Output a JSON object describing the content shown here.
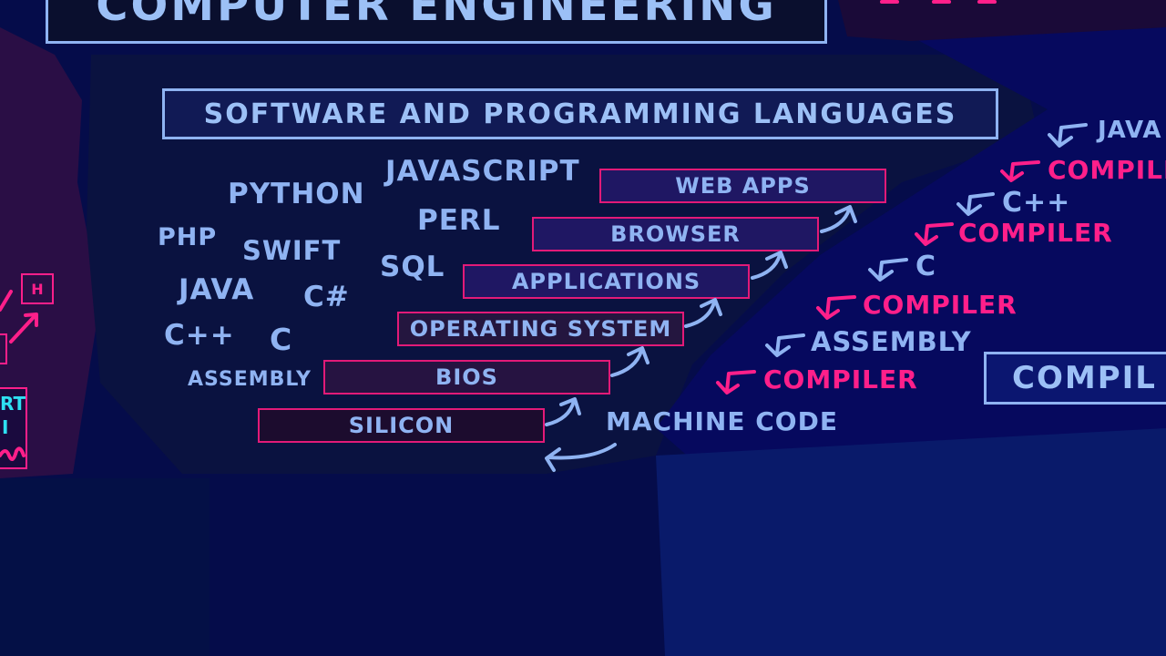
{
  "header": {
    "title": "COMPUTER ENGINEERING"
  },
  "section": {
    "title": "SOFTWARE AND PROGRAMMING LANGUAGES"
  },
  "languages": [
    "PYTHON",
    "JAVASCRIPT",
    "PERL",
    "PHP",
    "SWIFT",
    "SQL",
    "JAVA",
    "C#",
    "C++",
    "C",
    "ASSEMBLY"
  ],
  "stack": [
    "WEB APPS",
    "BROWSER",
    "APPLICATIONS",
    "OPERATING SYSTEM",
    "BIOS",
    "SILICON"
  ],
  "machine_code": "MACHINE CODE",
  "chain": {
    "java": "JAVA",
    "compiler_1": "COMPILE",
    "cpp": "C++",
    "compiler_2": "COMPILER",
    "c": "C",
    "compiler_3": "COMPILER",
    "assembly": "ASSEMBLY",
    "compiler_4": "COMPILER"
  },
  "right_box": "COMPIL",
  "left_fragments": {
    "h": "H",
    "rt": "RT",
    "i": "I"
  },
  "colors": {
    "background": "#050c4a",
    "chalk_blue": "#8fb3f2",
    "neon_pink": "#ff1f8a",
    "box_fill": "#1f1763"
  }
}
